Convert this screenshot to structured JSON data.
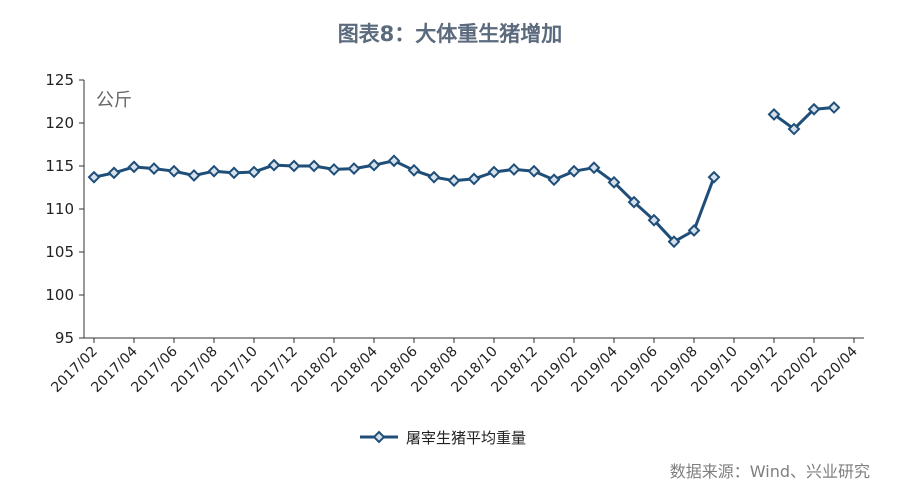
{
  "title": "图表8：大体重生猪增加",
  "source": "数据来源：Wind、兴业研究",
  "chart_data": {
    "type": "line",
    "unit_label": "公斤",
    "ylim": [
      95,
      125
    ],
    "yticks": [
      95,
      100,
      105,
      110,
      115,
      120,
      125
    ],
    "xlim": [
      "2017/02",
      "2020/04"
    ],
    "xticks": [
      "2017/02",
      "2017/04",
      "2017/06",
      "2017/08",
      "2017/10",
      "2017/12",
      "2018/02",
      "2018/04",
      "2018/06",
      "2018/08",
      "2018/10",
      "2018/12",
      "2019/02",
      "2019/04",
      "2019/06",
      "2019/08",
      "2019/10",
      "2019/12",
      "2020/02",
      "2020/04"
    ],
    "legend_position": "bottom",
    "series": [
      {
        "name": "屠宰生猪平均重量",
        "color": "#1f4e79",
        "marker": "diamond",
        "points": [
          {
            "x": "2017/02",
            "y": 113.7
          },
          {
            "x": "2017/03",
            "y": 114.2
          },
          {
            "x": "2017/04",
            "y": 114.9
          },
          {
            "x": "2017/05",
            "y": 114.7
          },
          {
            "x": "2017/06",
            "y": 114.4
          },
          {
            "x": "2017/07",
            "y": 113.9
          },
          {
            "x": "2017/08",
            "y": 114.4
          },
          {
            "x": "2017/09",
            "y": 114.2
          },
          {
            "x": "2017/10",
            "y": 114.3
          },
          {
            "x": "2017/11",
            "y": 115.1
          },
          {
            "x": "2017/12",
            "y": 115.0
          },
          {
            "x": "2018/01",
            "y": 115.0
          },
          {
            "x": "2018/02",
            "y": 114.6
          },
          {
            "x": "2018/03",
            "y": 114.7
          },
          {
            "x": "2018/04",
            "y": 115.1
          },
          {
            "x": "2018/05",
            "y": 115.6
          },
          {
            "x": "2018/06",
            "y": 114.5
          },
          {
            "x": "2018/07",
            "y": 113.7
          },
          {
            "x": "2018/08",
            "y": 113.3
          },
          {
            "x": "2018/09",
            "y": 113.5
          },
          {
            "x": "2018/10",
            "y": 114.3
          },
          {
            "x": "2018/11",
            "y": 114.6
          },
          {
            "x": "2018/12",
            "y": 114.4
          },
          {
            "x": "2019/01",
            "y": 113.4
          },
          {
            "x": "2019/02",
            "y": 114.4
          },
          {
            "x": "2019/03",
            "y": 114.8
          },
          {
            "x": "2019/04",
            "y": 113.1
          },
          {
            "x": "2019/05",
            "y": 110.8
          },
          {
            "x": "2019/06",
            "y": 108.7
          },
          {
            "x": "2019/07",
            "y": 106.2
          },
          {
            "x": "2019/08",
            "y": 107.5
          },
          {
            "x": "2019/09",
            "y": 113.7
          },
          {
            "x": "2019/10",
            "y": null
          },
          {
            "x": "2019/11",
            "y": null
          },
          {
            "x": "2019/12",
            "y": 121.0
          },
          {
            "x": "2020/01",
            "y": 119.3
          },
          {
            "x": "2020/02",
            "y": 121.6
          },
          {
            "x": "2020/03",
            "y": 121.8
          }
        ]
      }
    ]
  }
}
